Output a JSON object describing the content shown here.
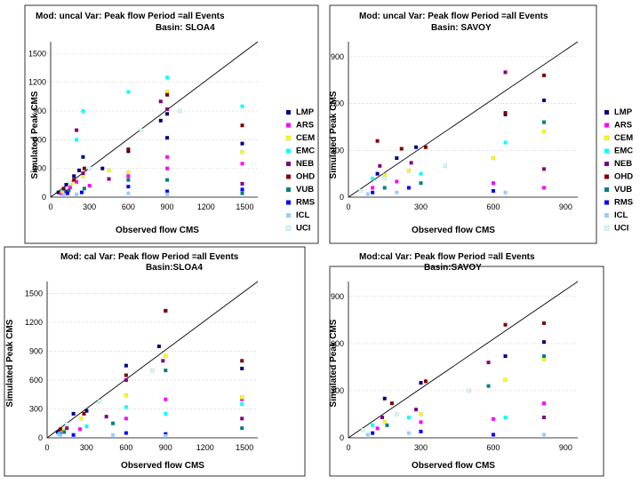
{
  "chart_data": [
    {
      "id": "p1",
      "type": "scatter",
      "title_line1": "Mod: uncal      Var: Peak flow  Period =all Events",
      "title_line2": "Basin: SLOA4",
      "xlabel": "Observed flow CMS",
      "ylabel": "Simulated Peak CMS",
      "xlim": [
        0,
        1600
      ],
      "ylim": [
        0,
        1550
      ],
      "xticks": [
        0,
        300,
        600,
        900,
        1200,
        1500
      ],
      "yticks": [
        0,
        300,
        600,
        900,
        1200,
        1500
      ],
      "grid": true,
      "series": [
        {
          "name": "LMP",
          "color": "#000080",
          "points": [
            [
              60,
              50
            ],
            [
              120,
              130
            ],
            [
              180,
              220
            ],
            [
              220,
              280
            ],
            [
              250,
              420
            ],
            [
              400,
              300
            ],
            [
              600,
              480
            ],
            [
              850,
              800
            ],
            [
              900,
              870
            ],
            [
              900,
              620
            ],
            [
              1480,
              560
            ]
          ]
        },
        {
          "name": "ARS",
          "color": "#ff00ff",
          "points": [
            [
              80,
              40
            ],
            [
              150,
              100
            ],
            [
              200,
              160
            ],
            [
              300,
              120
            ],
            [
              600,
              220
            ],
            [
              900,
              420
            ],
            [
              900,
              300
            ],
            [
              1480,
              350
            ]
          ]
        },
        {
          "name": "CEM",
          "color": "#ffff00",
          "points": [
            [
              90,
              60
            ],
            [
              160,
              140
            ],
            [
              250,
              220
            ],
            [
              450,
              280
            ],
            [
              600,
              260
            ],
            [
              900,
              1100
            ],
            [
              1480,
              470
            ]
          ]
        },
        {
          "name": "EMC",
          "color": "#00ffff",
          "points": [
            [
              100,
              80
            ],
            [
              200,
              600
            ],
            [
              250,
              900
            ],
            [
              600,
              1100
            ],
            [
              900,
              1250
            ],
            [
              1480,
              950
            ]
          ]
        },
        {
          "name": "NEB",
          "color": "#800080",
          "points": [
            [
              120,
              60
            ],
            [
              200,
              700
            ],
            [
              250,
              250
            ],
            [
              450,
              190
            ],
            [
              850,
              1000
            ],
            [
              900,
              920
            ],
            [
              1480,
              140
            ]
          ]
        },
        {
          "name": "OHD",
          "color": "#800000",
          "points": [
            [
              100,
              90
            ],
            [
              180,
              180
            ],
            [
              260,
              300
            ],
            [
              600,
              500
            ],
            [
              900,
              1070
            ],
            [
              1480,
              750
            ]
          ]
        },
        {
          "name": "VUB",
          "color": "#008080",
          "points": [
            [
              140,
              70
            ],
            [
              260,
              90
            ],
            [
              600,
              180
            ],
            [
              900,
              180
            ],
            [
              1480,
              40
            ]
          ]
        },
        {
          "name": "RMS",
          "color": "#0000ff",
          "points": [
            [
              130,
              40
            ],
            [
              240,
              50
            ],
            [
              600,
              110
            ],
            [
              900,
              60
            ],
            [
              1480,
              80
            ]
          ]
        },
        {
          "name": "ICL",
          "color": "#99ccff",
          "points": [
            [
              100,
              20
            ],
            [
              200,
              30
            ],
            [
              600,
              40
            ],
            [
              900,
              30
            ]
          ]
        },
        {
          "name": "UCI",
          "color": "#ccffff",
          "points": [
            [
              150,
              150
            ],
            [
              300,
              300
            ],
            [
              700,
              700
            ],
            [
              1000,
              900
            ]
          ]
        }
      ]
    },
    {
      "id": "p2",
      "type": "scatter",
      "title_line1": "Mod: uncal      Var: Peak flow  Period =all Events",
      "title_line2": "Basin: SAVOY",
      "xlabel": "Observed flow CMS",
      "ylabel": "Simulated Peak CMS",
      "xlim": [
        0,
        950
      ],
      "ylim": [
        0,
        950
      ],
      "xticks": [
        0,
        300,
        600,
        900
      ],
      "yticks": [
        0,
        300,
        600,
        900
      ],
      "grid": true,
      "series": [
        {
          "name": "LMP",
          "color": "#000080",
          "points": [
            [
              120,
              150
            ],
            [
              200,
              250
            ],
            [
              280,
              320
            ],
            [
              650,
              530
            ],
            [
              810,
              620
            ]
          ]
        },
        {
          "name": "ARS",
          "color": "#ff00ff",
          "points": [
            [
              100,
              60
            ],
            [
              200,
              100
            ],
            [
              600,
              90
            ],
            [
              810,
              60
            ]
          ]
        },
        {
          "name": "CEM",
          "color": "#ffff00",
          "points": [
            [
              150,
              140
            ],
            [
              250,
              170
            ],
            [
              600,
              250
            ],
            [
              810,
              420
            ]
          ]
        },
        {
          "name": "EMC",
          "color": "#00ffff",
          "points": [
            [
              100,
              120
            ],
            [
              300,
              150
            ],
            [
              650,
              350
            ],
            [
              810,
              480
            ]
          ]
        },
        {
          "name": "NEB",
          "color": "#800080",
          "points": [
            [
              130,
              200
            ],
            [
              260,
              220
            ],
            [
              650,
              800
            ],
            [
              810,
              180
            ]
          ]
        },
        {
          "name": "OHD",
          "color": "#800000",
          "points": [
            [
              120,
              360
            ],
            [
              220,
              310
            ],
            [
              320,
              320
            ],
            [
              650,
              540
            ],
            [
              810,
              780
            ]
          ]
        },
        {
          "name": "VUB",
          "color": "#008080",
          "points": [
            [
              150,
              60
            ],
            [
              300,
              90
            ],
            [
              810,
              480
            ]
          ]
        },
        {
          "name": "RMS",
          "color": "#0000ff",
          "points": [
            [
              100,
              30
            ],
            [
              250,
              60
            ],
            [
              600,
              40
            ]
          ]
        },
        {
          "name": "ICL",
          "color": "#99ccff",
          "points": [
            [
              80,
              20
            ],
            [
              200,
              30
            ],
            [
              650,
              30
            ]
          ]
        },
        {
          "name": "UCI",
          "color": "#ccffff",
          "points": [
            [
              50,
              40
            ],
            [
              150,
              120
            ],
            [
              400,
              200
            ]
          ]
        }
      ],
      "legend": [
        "LMP",
        "ARS",
        "CEM",
        "EMC",
        "NEB",
        "OHD",
        "VUB",
        "RMS",
        "ICL",
        "UCI"
      ]
    },
    {
      "id": "p3",
      "type": "scatter",
      "title_line1": "Mod: cal      Var: Peak flow  Period =all Events",
      "title_line2": "Basin:SLOA4",
      "xlabel": "Observed flow CMS",
      "ylabel": "Simulated Peak CMS",
      "xlim": [
        0,
        1600
      ],
      "ylim": [
        0,
        1550
      ],
      "xticks": [
        0,
        300,
        600,
        900,
        1200,
        1500
      ],
      "yticks": [
        0,
        300,
        600,
        900,
        1200,
        1500
      ],
      "grid": true,
      "series": [
        {
          "name": "LMP",
          "color": "#000080",
          "points": [
            [
              80,
              60
            ],
            [
              200,
              250
            ],
            [
              300,
              280
            ],
            [
              600,
              750
            ],
            [
              850,
              950
            ],
            [
              900,
              1320
            ],
            [
              1480,
              720
            ]
          ]
        },
        {
          "name": "ARS",
          "color": "#ff00ff",
          "points": [
            [
              100,
              50
            ],
            [
              250,
              90
            ],
            [
              600,
              200
            ],
            [
              900,
              400
            ],
            [
              1480,
              400
            ]
          ]
        },
        {
          "name": "CEM",
          "color": "#ffff00",
          "points": [
            [
              120,
              80
            ],
            [
              260,
              200
            ],
            [
              600,
              440
            ],
            [
              900,
              850
            ],
            [
              1480,
              420
            ]
          ]
        },
        {
          "name": "EMC",
          "color": "#00ffff",
          "points": [
            [
              90,
              40
            ],
            [
              300,
              120
            ],
            [
              600,
              320
            ],
            [
              900,
              250
            ],
            [
              1480,
              350
            ]
          ]
        },
        {
          "name": "NEB",
          "color": "#800080",
          "points": [
            [
              150,
              100
            ],
            [
              450,
              220
            ],
            [
              600,
              600
            ],
            [
              880,
              800
            ],
            [
              1480,
              200
            ]
          ]
        },
        {
          "name": "OHD",
          "color": "#800000",
          "points": [
            [
              100,
              90
            ],
            [
              280,
              250
            ],
            [
              600,
              650
            ],
            [
              900,
              1320
            ],
            [
              1480,
              800
            ]
          ]
        },
        {
          "name": "VUB",
          "color": "#008080",
          "points": [
            [
              130,
              60
            ],
            [
              500,
              150
            ],
            [
              900,
              700
            ],
            [
              1480,
              100
            ]
          ]
        },
        {
          "name": "RMS",
          "color": "#0000ff",
          "points": [
            [
              200,
              30
            ],
            [
              600,
              50
            ],
            [
              900,
              40
            ]
          ]
        },
        {
          "name": "ICL",
          "color": "#99ccff",
          "points": [
            [
              100,
              20
            ],
            [
              500,
              30
            ],
            [
              900,
              20
            ]
          ]
        },
        {
          "name": "UCI",
          "color": "#ccffff",
          "points": [
            [
              150,
              140
            ],
            [
              400,
              380
            ],
            [
              800,
              700
            ]
          ]
        }
      ]
    },
    {
      "id": "p4",
      "type": "scatter",
      "title_line1": "Mod:cal      Var: Peak flow  Period =all Events",
      "title_line2": "Basin:SAVOY",
      "xlabel": "Observed flow CMS",
      "ylabel": "Simulated Peak CMS",
      "xlim": [
        0,
        950
      ],
      "ylim": [
        0,
        950
      ],
      "xticks": [
        0,
        300,
        600,
        900
      ],
      "yticks": [
        0,
        300,
        600,
        900
      ],
      "grid": true,
      "series": [
        {
          "name": "LMP",
          "color": "#000080",
          "points": [
            [
              150,
              250
            ],
            [
              300,
              350
            ],
            [
              650,
              520
            ],
            [
              810,
              610
            ]
          ]
        },
        {
          "name": "ARS",
          "color": "#ff00ff",
          "points": [
            [
              120,
              60
            ],
            [
              300,
              100
            ],
            [
              600,
              120
            ],
            [
              810,
              220
            ]
          ]
        },
        {
          "name": "CEM",
          "color": "#ffff00",
          "points": [
            [
              150,
              100
            ],
            [
              300,
              150
            ],
            [
              650,
              370
            ],
            [
              810,
              500
            ]
          ]
        },
        {
          "name": "EMC",
          "color": "#00ffff",
          "points": [
            [
              100,
              80
            ],
            [
              250,
              130
            ],
            [
              650,
              130
            ],
            [
              810,
              520
            ]
          ]
        },
        {
          "name": "NEB",
          "color": "#800080",
          "points": [
            [
              140,
              130
            ],
            [
              280,
              180
            ],
            [
              580,
              480
            ],
            [
              810,
              130
            ]
          ]
        },
        {
          "name": "OHD",
          "color": "#800000",
          "points": [
            [
              180,
              220
            ],
            [
              320,
              360
            ],
            [
              650,
              720
            ],
            [
              810,
              730
            ]
          ]
        },
        {
          "name": "VUB",
          "color": "#008080",
          "points": [
            [
              160,
              80
            ],
            [
              580,
              330
            ],
            [
              810,
              520
            ]
          ]
        },
        {
          "name": "RMS",
          "color": "#0000ff",
          "points": [
            [
              100,
              30
            ],
            [
              300,
              40
            ],
            [
              600,
              20
            ]
          ]
        },
        {
          "name": "ICL",
          "color": "#99ccff",
          "points": [
            [
              80,
              20
            ],
            [
              250,
              30
            ],
            [
              810,
              20
            ]
          ]
        },
        {
          "name": "UCI",
          "color": "#ccffff",
          "points": [
            [
              60,
              50
            ],
            [
              200,
              150
            ],
            [
              500,
              300
            ]
          ]
        }
      ]
    }
  ]
}
